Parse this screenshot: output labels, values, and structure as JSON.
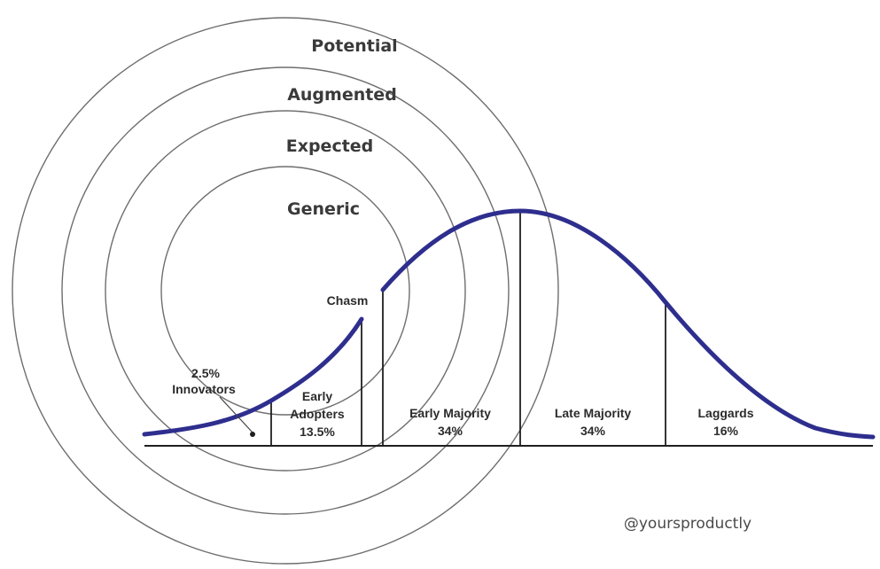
{
  "rings": [
    {
      "label": "Potential"
    },
    {
      "label": "Augmented"
    },
    {
      "label": "Expected"
    },
    {
      "label": "Generic"
    }
  ],
  "chasm_label": "Chasm",
  "segments": [
    {
      "line1": "2.5%",
      "line2": "Innovators",
      "line3": ""
    },
    {
      "line1": "Early",
      "line2": "Adopters",
      "line3": "13.5%"
    },
    {
      "line1": "Early Majority",
      "line2": "34%",
      "line3": ""
    },
    {
      "line1": "Late Majority",
      "line2": "34%",
      "line3": ""
    },
    {
      "line1": "Laggards",
      "line2": "16%",
      "line3": ""
    }
  ],
  "credit": "@yoursproductly",
  "colors": {
    "curve": "#2e2e8e",
    "ring": "#6e6e6e",
    "text": "#2b2b2b"
  }
}
